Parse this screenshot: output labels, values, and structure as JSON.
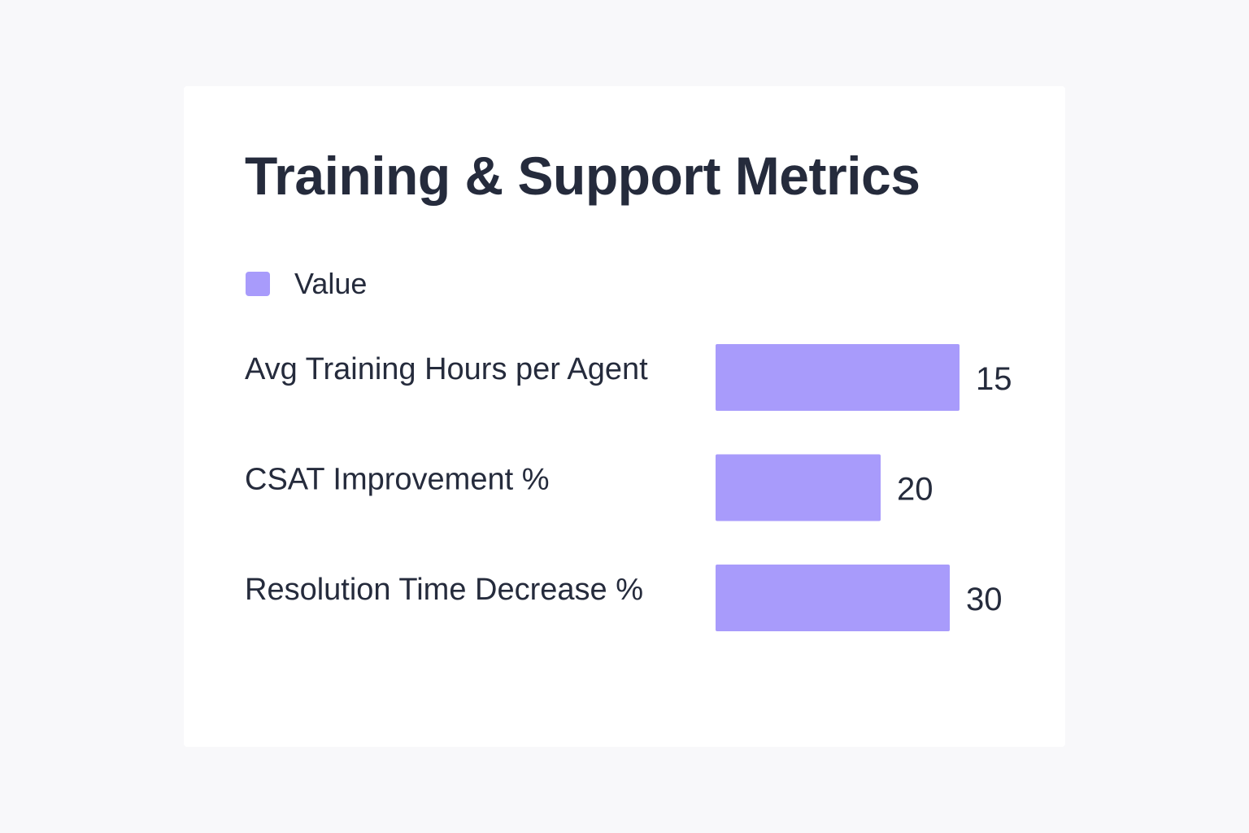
{
  "chart_data": {
    "type": "bar",
    "orientation": "horizontal",
    "title": "Training & Support Metrics",
    "categories": [
      "Avg Training Hours per Agent",
      "CSAT Improvement %",
      "Resolution Time Decrease %"
    ],
    "series": [
      {
        "name": "Value",
        "values": [
          15,
          20,
          30
        ]
      }
    ],
    "legend_position": "top-left",
    "grid": false
  },
  "colors": {
    "bar": "#a89bfb",
    "text": "#252b3c",
    "card": "#ffffff",
    "background": "#f8f8fa"
  }
}
